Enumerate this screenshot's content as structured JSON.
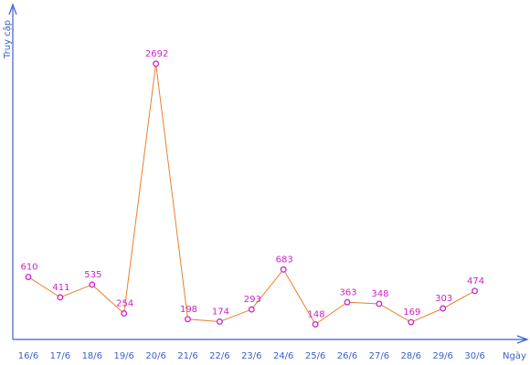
{
  "chart_data": {
    "type": "line",
    "title": "",
    "xlabel": "Ngày",
    "ylabel": "Truy cập",
    "categories": [
      "16/6",
      "17/6",
      "18/6",
      "19/6",
      "20/6",
      "21/6",
      "22/6",
      "23/6",
      "24/6",
      "25/6",
      "26/6",
      "27/6",
      "28/6",
      "29/6",
      "30/6"
    ],
    "series": [
      {
        "values": [
          610,
          411,
          535,
          254,
          2692,
          198,
          174,
          293,
          683,
          148,
          363,
          348,
          169,
          303,
          474
        ]
      }
    ],
    "ylim": [
      0,
      2900
    ],
    "grid": false,
    "legend": "none"
  },
  "colors": {
    "axis": "#3a5fcd",
    "line": "#e8802a",
    "marker": "#cc22cc",
    "data_label": "#cc22cc"
  }
}
